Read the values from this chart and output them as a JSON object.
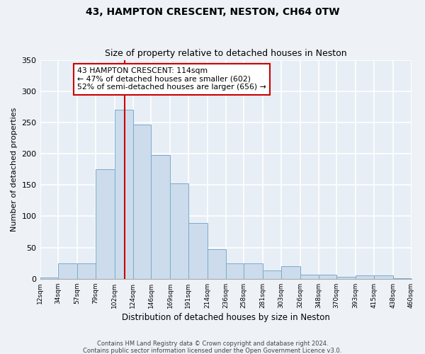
{
  "title": "43, HAMPTON CRESCENT, NESTON, CH64 0TW",
  "subtitle": "Size of property relative to detached houses in Neston",
  "xlabel": "Distribution of detached houses by size in Neston",
  "ylabel": "Number of detached properties",
  "bar_color": "#ccdcec",
  "bar_edge_color": "#7aabcc",
  "bin_edges": [
    12,
    34,
    57,
    79,
    102,
    124,
    146,
    169,
    191,
    214,
    236,
    258,
    281,
    303,
    326,
    348,
    370,
    393,
    415,
    438,
    460
  ],
  "bar_heights": [
    2,
    25,
    25,
    175,
    270,
    247,
    198,
    153,
    89,
    47,
    25,
    25,
    13,
    20,
    7,
    7,
    3,
    5,
    5,
    1
  ],
  "tick_labels": [
    "12sqm",
    "34sqm",
    "57sqm",
    "79sqm",
    "102sqm",
    "124sqm",
    "146sqm",
    "169sqm",
    "191sqm",
    "214sqm",
    "236sqm",
    "258sqm",
    "281sqm",
    "303sqm",
    "326sqm",
    "348sqm",
    "370sqm",
    "393sqm",
    "415sqm",
    "438sqm",
    "460sqm"
  ],
  "vline_x": 114,
  "vline_color": "#cc0000",
  "annotation_text": "43 HAMPTON CRESCENT: 114sqm\n← 47% of detached houses are smaller (602)\n52% of semi-detached houses are larger (656) →",
  "annotation_box_color": "#ffffff",
  "annotation_box_edge": "#cc0000",
  "ylim": [
    0,
    350
  ],
  "yticks": [
    0,
    50,
    100,
    150,
    200,
    250,
    300,
    350
  ],
  "footer1": "Contains HM Land Registry data © Crown copyright and database right 2024.",
  "footer2": "Contains public sector information licensed under the Open Government Licence v3.0.",
  "background_color": "#eef2f7",
  "grid_color": "#ffffff",
  "ax_background": "#e8eef5"
}
